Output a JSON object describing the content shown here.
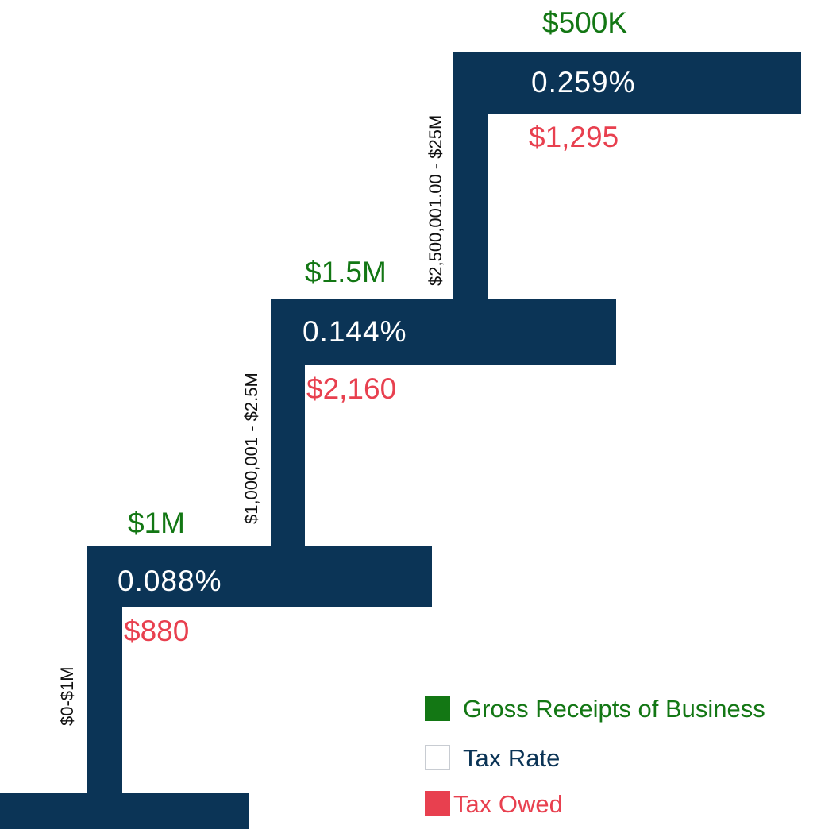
{
  "colors": {
    "stair": "#0b3456",
    "gross_receipts": "#137714",
    "tax_rate_text": "#ffffff",
    "tax_owed": "#e8404f",
    "range_text": "#111111"
  },
  "tiers": [
    {
      "range": "$0-$1M",
      "receipts": "$1M",
      "rate": "0.088%",
      "owed": "$880"
    },
    {
      "range": "$1,000,001 - $2.5M",
      "receipts": "$1.5M",
      "rate": "0.144%",
      "owed": "$2,160"
    },
    {
      "range": "$2,500,001.00 - $25M",
      "receipts": "$500K",
      "rate": "0.259%",
      "owed": "$1,295"
    }
  ],
  "legend": [
    {
      "label": "Gross Receipts of Business",
      "swatch": "#137714",
      "text_color": "#137714"
    },
    {
      "label": "Tax Rate",
      "swatch": "#ffffff",
      "text_color": "#0b3456"
    },
    {
      "label": "Tax Owed",
      "swatch": "#e8404f",
      "text_color": "#e8404f"
    }
  ]
}
